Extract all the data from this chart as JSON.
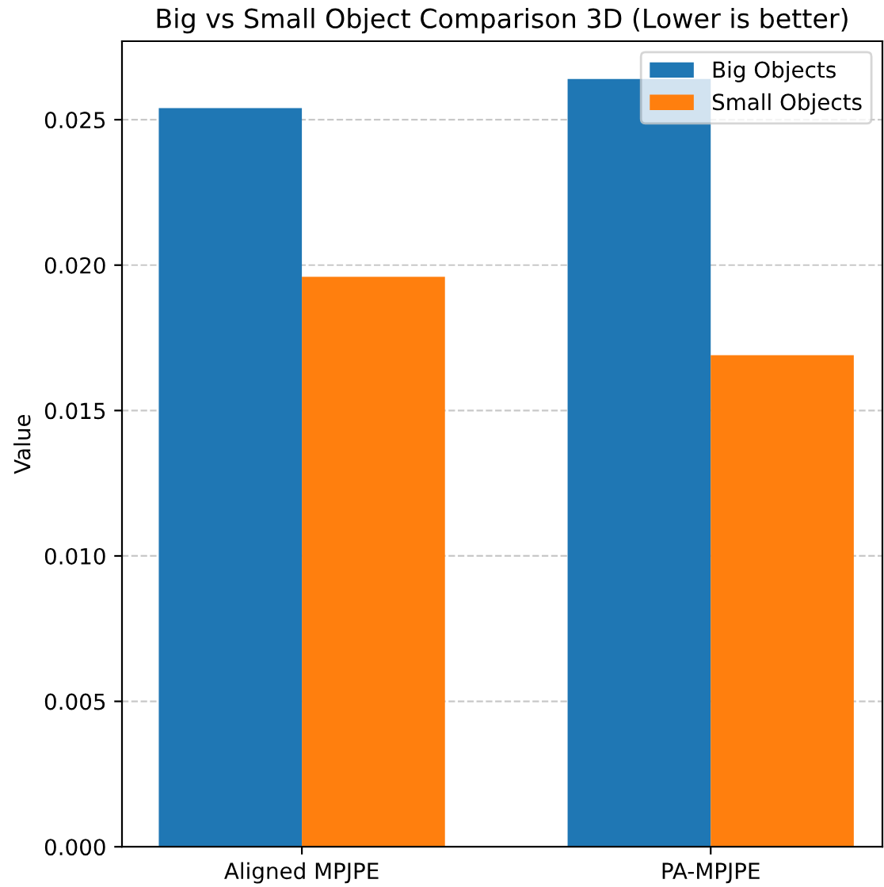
{
  "chart_data": {
    "type": "bar",
    "title": "Big vs Small Object Comparison 3D (Lower is better)",
    "ylabel": "Value",
    "categories": [
      "Aligned MPJPE",
      "PA-MPJPE"
    ],
    "series": [
      {
        "name": "Big Objects",
        "color": "#1f77b4",
        "values": [
          0.0254,
          0.0264
        ]
      },
      {
        "name": "Small Objects",
        "color": "#ff7f0e",
        "values": [
          0.0196,
          0.0169
        ]
      }
    ],
    "ylim": [
      0,
      0.0277
    ],
    "yticks": [
      {
        "value": 0,
        "label": "0.000"
      },
      {
        "value": 0.005,
        "label": "0.005"
      },
      {
        "value": 0.01,
        "label": "0.010"
      },
      {
        "value": 0.015,
        "label": "0.015"
      },
      {
        "value": 0.02,
        "label": "0.020"
      },
      {
        "value": 0.025,
        "label": "0.025"
      }
    ],
    "grid": "y",
    "legend": "top right"
  }
}
